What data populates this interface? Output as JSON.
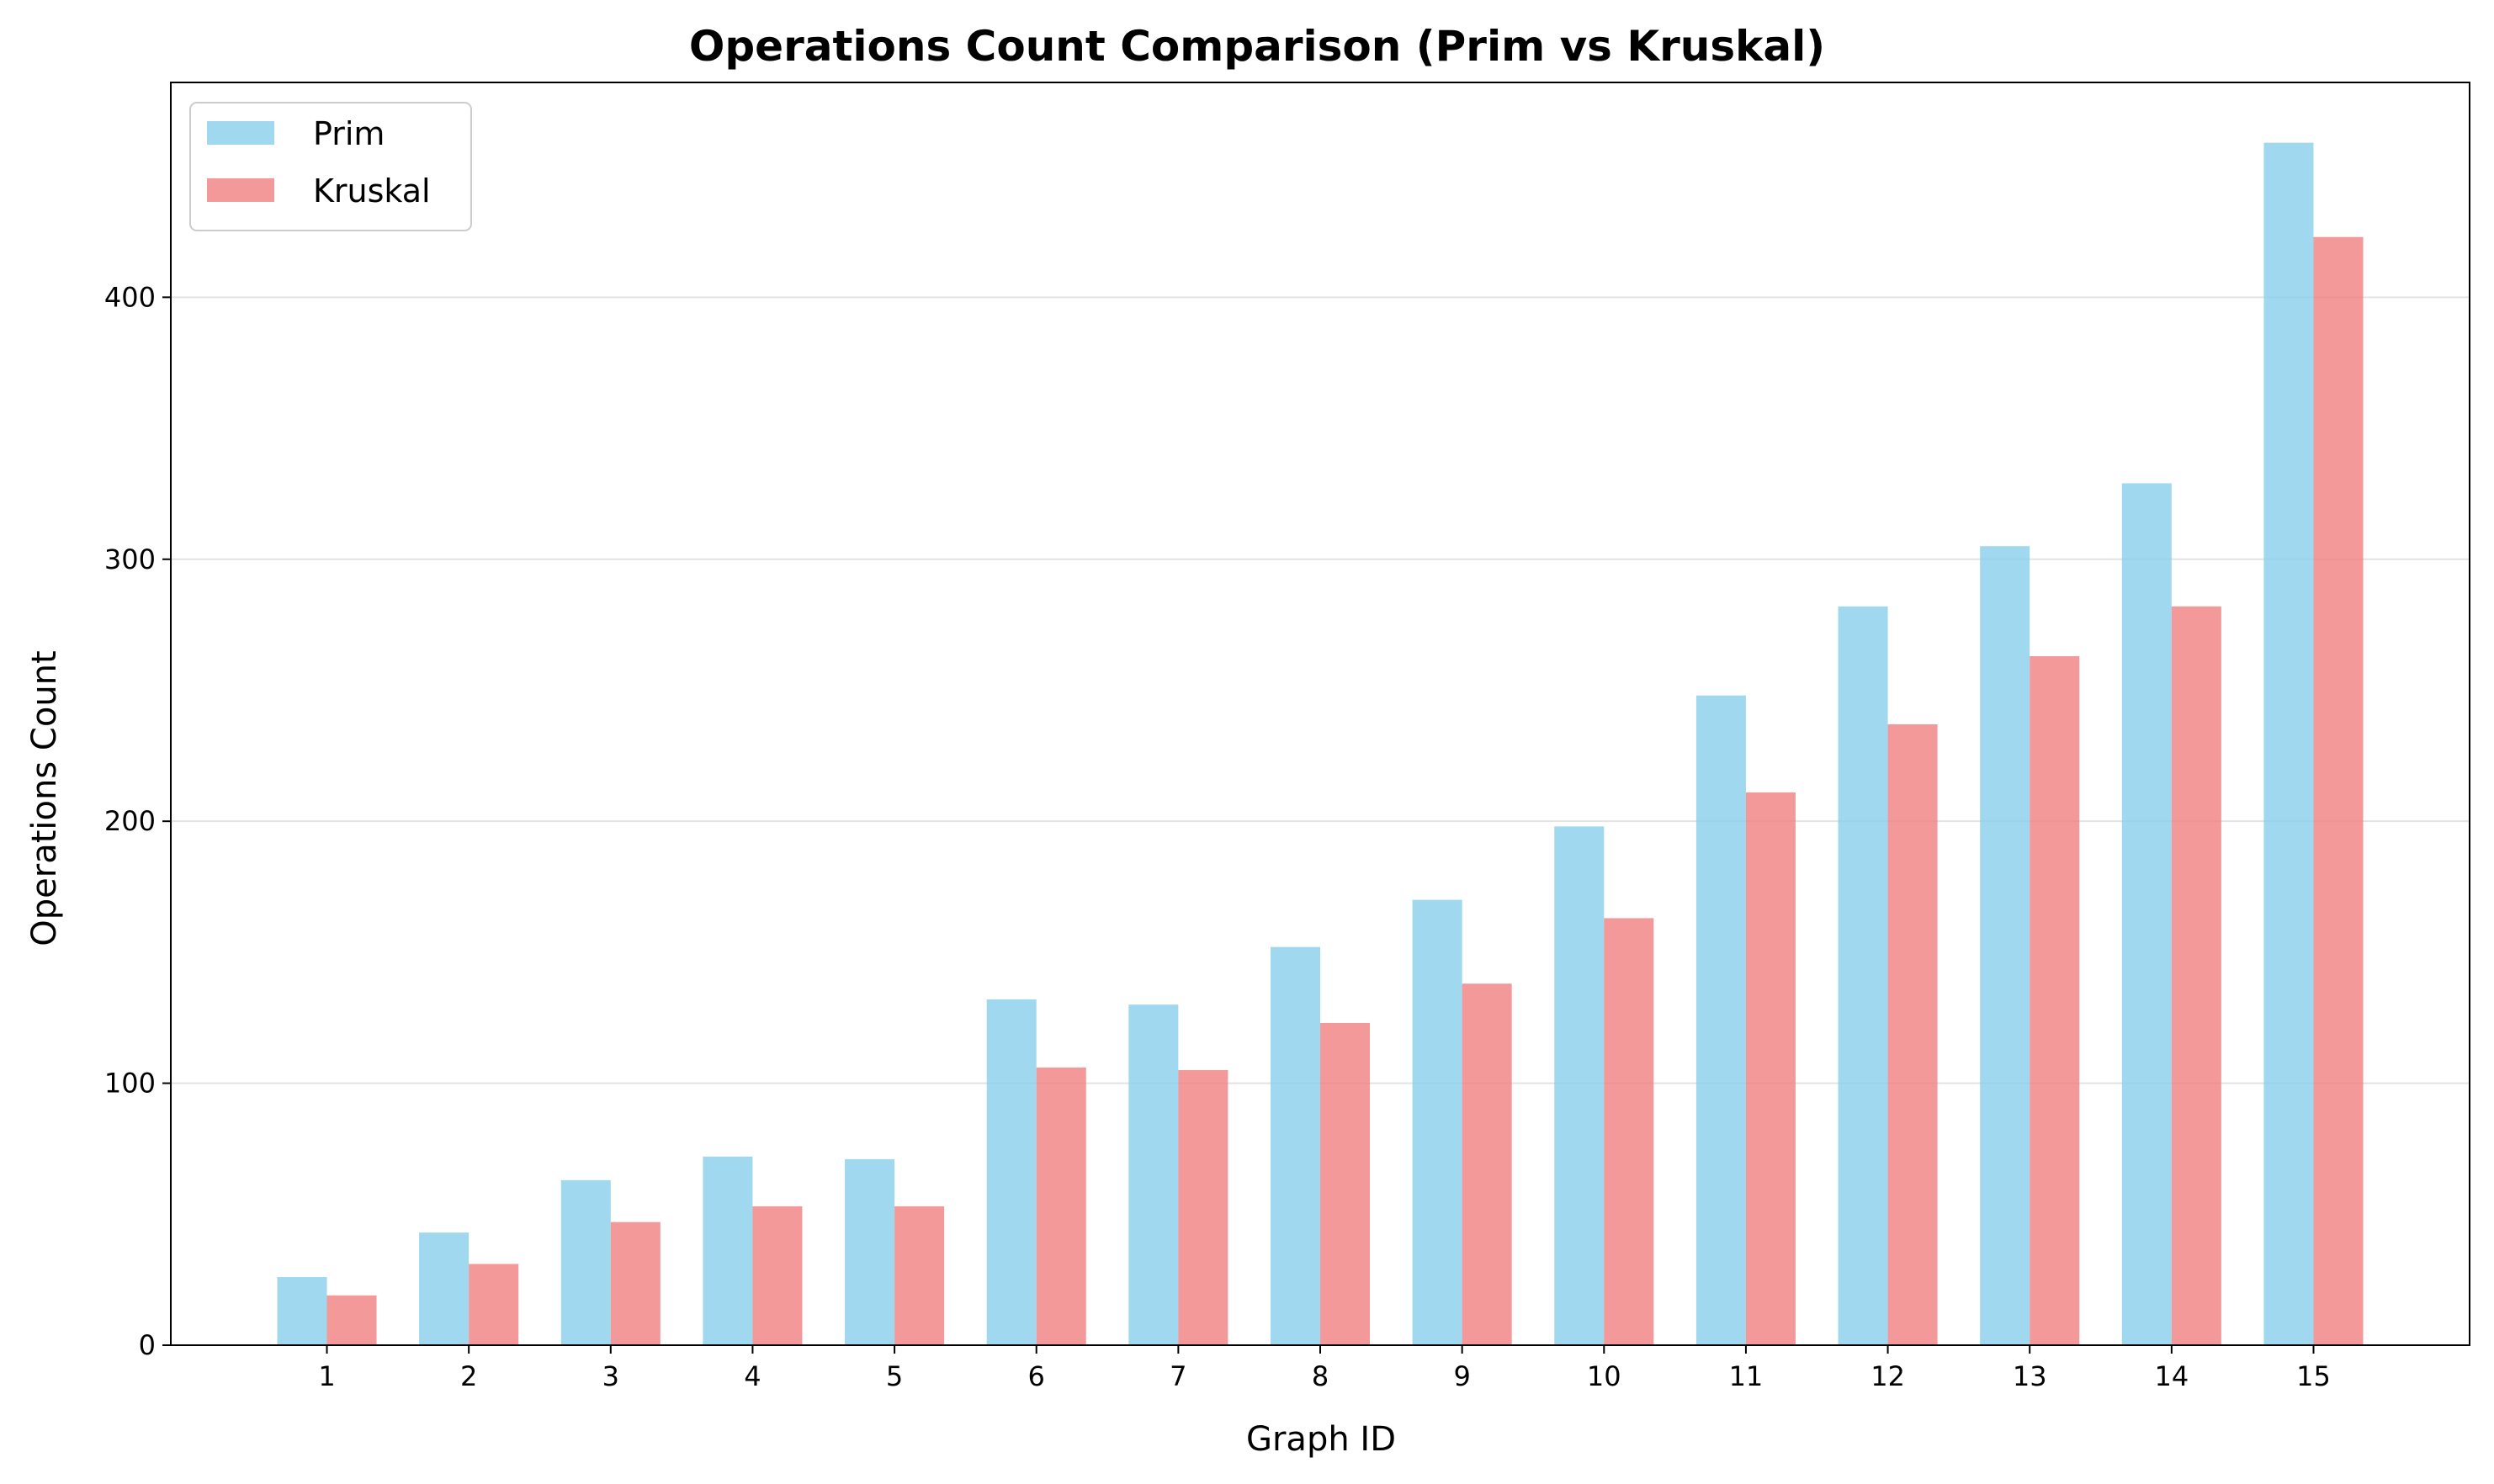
{
  "chart_data": {
    "type": "bar",
    "title": "Operations Count Comparison (Prim vs Kruskal)",
    "xlabel": "Graph ID",
    "ylabel": "Operations Count",
    "categories": [
      "1",
      "2",
      "3",
      "4",
      "5",
      "6",
      "7",
      "8",
      "9",
      "10",
      "11",
      "12",
      "13",
      "14",
      "15"
    ],
    "series": [
      {
        "name": "Prim",
        "color": "#87CEEB",
        "values": [
          26,
          43,
          63,
          72,
          71,
          132,
          130,
          152,
          170,
          198,
          248,
          282,
          305,
          329,
          459
        ]
      },
      {
        "name": "Kruskal",
        "color": "#F08080",
        "values": [
          19,
          31,
          47,
          53,
          53,
          106,
          105,
          123,
          138,
          163,
          211,
          237,
          263,
          282,
          423
        ]
      }
    ],
    "ylim": [
      0,
      482
    ],
    "yticks": [
      0,
      100,
      200,
      300,
      400
    ],
    "grid": "horizontal",
    "legend": "top-left"
  }
}
